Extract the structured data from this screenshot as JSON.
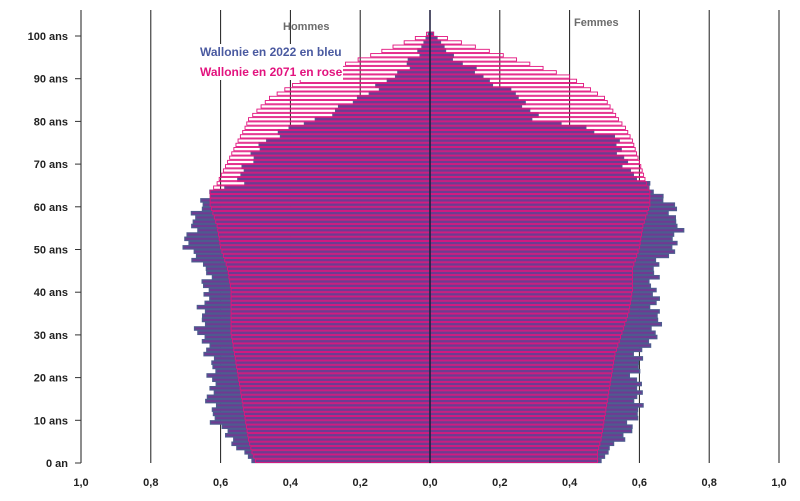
{
  "chart_data": {
    "type": "bar",
    "subtype": "population-pyramid",
    "title": "",
    "left_header": "Hommes",
    "right_header": "Femmes",
    "xlabel": "",
    "ylabel": "",
    "x_ticks": [
      "1,0",
      "0,8",
      "0,6",
      "0,4",
      "0,2",
      "0,0",
      "0,2",
      "0,4",
      "0,6",
      "0,8",
      "1,0"
    ],
    "xlim": [
      -1.0,
      1.0
    ],
    "y_ticks": [
      "0 an",
      "10 ans",
      "20 ans",
      "30 ans",
      "40 ans",
      "50 ans",
      "60 ans",
      "70 ans",
      "80 ans",
      "90 ans",
      "100 ans"
    ],
    "ylim": [
      0,
      100
    ],
    "grid": true,
    "legend": {
      "position": "top-left",
      "entries": [
        "Wallonie en 2022 en bleu",
        "Wallonie en 2071 en rose"
      ]
    },
    "colors": {
      "series_2022_fill": "#6f3a92",
      "series_2022_edge": "#4e5b8f",
      "series_2071_edge": "#e2137e",
      "legend_2022": "#4a5aa0",
      "legend_2071": "#e2137e",
      "center_line": "#1a1a3a"
    },
    "age_anchors": [
      0,
      2,
      5,
      10,
      15,
      20,
      25,
      30,
      35,
      40,
      45,
      50,
      55,
      60,
      63,
      65,
      70,
      75,
      78,
      80,
      85,
      90,
      95,
      100
    ],
    "series": [
      {
        "name": "Wallonie en 2022 en bleu",
        "side": "Hommes",
        "values": [
          0.51,
          0.53,
          0.57,
          0.62,
          0.63,
          0.62,
          0.63,
          0.66,
          0.65,
          0.64,
          0.64,
          0.7,
          0.68,
          0.66,
          0.62,
          0.55,
          0.52,
          0.47,
          0.4,
          0.32,
          0.2,
          0.1,
          0.035,
          0.005
        ]
      },
      {
        "name": "Wallonie en 2022 en bleu",
        "side": "Femmes",
        "values": [
          0.49,
          0.51,
          0.55,
          0.59,
          0.6,
          0.59,
          0.6,
          0.65,
          0.65,
          0.64,
          0.64,
          0.7,
          0.71,
          0.69,
          0.65,
          0.61,
          0.55,
          0.54,
          0.45,
          0.3,
          0.26,
          0.15,
          0.06,
          0.01
        ]
      },
      {
        "name": "Wallonie en 2071 en rose",
        "side": "Hommes",
        "values": [
          0.5,
          0.51,
          0.52,
          0.53,
          0.54,
          0.55,
          0.56,
          0.57,
          0.57,
          0.57,
          0.58,
          0.6,
          0.61,
          0.63,
          0.63,
          0.61,
          0.58,
          0.55,
          0.53,
          0.52,
          0.46,
          0.35,
          0.17,
          0.01
        ]
      },
      {
        "name": "Wallonie en 2071 en rose",
        "side": "Femmes",
        "values": [
          0.48,
          0.48,
          0.49,
          0.5,
          0.51,
          0.52,
          0.53,
          0.55,
          0.57,
          0.58,
          0.58,
          0.6,
          0.61,
          0.63,
          0.63,
          0.62,
          0.6,
          0.58,
          0.56,
          0.54,
          0.5,
          0.4,
          0.21,
          0.01
        ]
      }
    ]
  }
}
